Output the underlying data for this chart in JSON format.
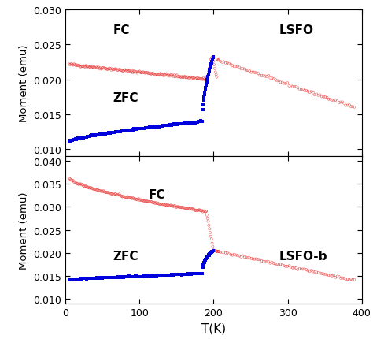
{
  "top_panel": {
    "label": "LSFO",
    "fc_label": "FC",
    "zfc_label": "ZFC",
    "ylim": [
      0.009,
      0.03
    ],
    "yticks": [
      0.01,
      0.015,
      0.02,
      0.025,
      0.03
    ],
    "fc_color": "#e83030",
    "zfc_color": "#0000dd"
  },
  "bottom_panel": {
    "label": "LSFO-b",
    "fc_label": "FC",
    "zfc_label": "ZFC",
    "ylim": [
      0.009,
      0.041
    ],
    "yticks": [
      0.01,
      0.015,
      0.02,
      0.025,
      0.03,
      0.035,
      0.04
    ],
    "fc_color": "#e83030",
    "zfc_color": "#0000dd"
  },
  "xlim": [
    0,
    400
  ],
  "xticks": [
    0,
    100,
    200,
    300,
    400
  ],
  "xlabel": "T(K)",
  "ylabel": "Moment (emu)",
  "bg_color": "#ffffff"
}
